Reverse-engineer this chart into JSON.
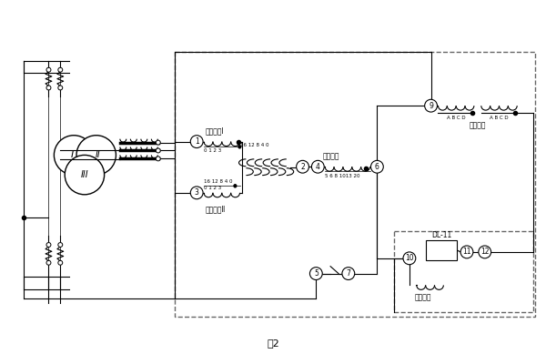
{
  "title": "图2",
  "bg_color": "#ffffff",
  "lc": "#000000",
  "dashed_color": "#666666",
  "fig_width": 6.0,
  "fig_height": 4.0,
  "ping_heng_I": "平衡绕组I",
  "ping_heng_II": "平衡绕组Ⅱ",
  "gong_zuo": "工作绕组",
  "duan_lu": "短路绕组",
  "er_ci": "二次绕组",
  "dl11": "DL-11"
}
